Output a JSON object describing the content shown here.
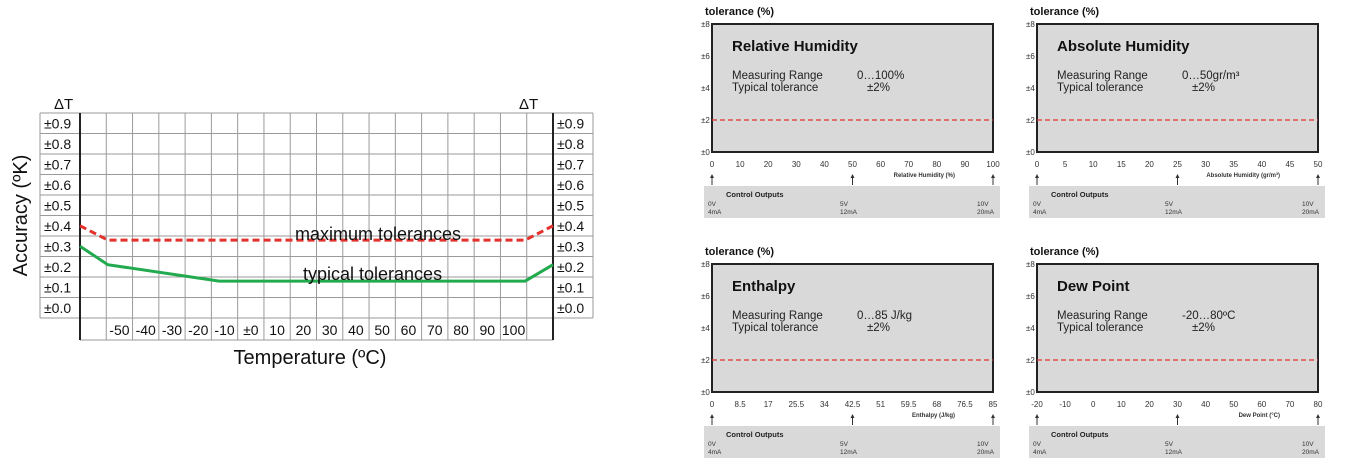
{
  "chart_data": [
    {
      "type": "line",
      "title": "",
      "xlabel": "Temperature (ºC)",
      "ylabel": "Accuracy (ºK)",
      "y_axis_header": "ΔT",
      "x_ticks": [
        "-50",
        "-40",
        "-30",
        "-20",
        "-10",
        "±0",
        "10",
        "20",
        "30",
        "40",
        "50",
        "60",
        "70",
        "80",
        "90",
        "100"
      ],
      "y_ticks": [
        "±0.0",
        "±0.1",
        "±0.2",
        "±0.3",
        "±0.4",
        "±0.5",
        "±0.6",
        "±0.7",
        "±0.8",
        "±0.9"
      ],
      "xlim": [
        -60,
        110
      ],
      "ylim": [
        0,
        1.0
      ],
      "grid": true,
      "series": [
        {
          "name": "maximum tolerances",
          "style": "dashed",
          "color": "#e4312b",
          "x": [
            -60,
            -50,
            90,
            100,
            110
          ],
          "y": [
            0.45,
            0.38,
            0.38,
            0.38,
            0.45
          ]
        },
        {
          "name": "typical tolerances",
          "style": "solid",
          "color": "#22aa4e",
          "x": [
            -60,
            -50,
            -10,
            90,
            100,
            110
          ],
          "y": [
            0.35,
            0.26,
            0.18,
            0.18,
            0.18,
            0.26
          ]
        }
      ]
    },
    {
      "type": "line",
      "title": "Relative Humidity",
      "ylabel": "tolerance (%)",
      "y_ticks": [
        "±0",
        "±2",
        "±4",
        "±6",
        "±8"
      ],
      "ylim": [
        0,
        8
      ],
      "range_label": "Measuring Range",
      "range_value": "0…100%",
      "tolerance_label": "Typical tolerance",
      "tolerance_value": "±2%",
      "x_ticks": [
        "0",
        "10",
        "20",
        "30",
        "40",
        "50",
        "60",
        "70",
        "80",
        "90",
        "100"
      ],
      "xlabel": "Relative Humidity (%)",
      "tolerance_line": 2,
      "outputs_title": "Control Outputs",
      "outputs": [
        {
          "v": "0V",
          "ma": "4mA"
        },
        {
          "v": "5V",
          "ma": "12mA"
        },
        {
          "v": "10V",
          "ma": "20mA"
        }
      ]
    },
    {
      "type": "line",
      "title": "Absolute Humidity",
      "ylabel": "tolerance (%)",
      "y_ticks": [
        "±0",
        "±2",
        "±4",
        "±6",
        "±8"
      ],
      "ylim": [
        0,
        8
      ],
      "range_label": "Measuring Range",
      "range_value": "0…50gr/m³",
      "tolerance_label": "Typical tolerance",
      "tolerance_value": "±2%",
      "x_ticks": [
        "0",
        "5",
        "10",
        "15",
        "20",
        "25",
        "30",
        "35",
        "40",
        "45",
        "50"
      ],
      "xlabel": "Absolute Humidity (gr/m³)",
      "tolerance_line": 2,
      "outputs_title": "Control Outputs",
      "outputs": [
        {
          "v": "0V",
          "ma": "4mA"
        },
        {
          "v": "5V",
          "ma": "12mA"
        },
        {
          "v": "10V",
          "ma": "20mA"
        }
      ]
    },
    {
      "type": "line",
      "title": "Enthalpy",
      "ylabel": "tolerance (%)",
      "y_ticks": [
        "±0",
        "±2",
        "±4",
        "±6",
        "±8"
      ],
      "ylim": [
        0,
        8
      ],
      "range_label": "Measuring Range",
      "range_value": "0…85 J/kg",
      "tolerance_label": "Typical tolerance",
      "tolerance_value": "±2%",
      "x_ticks": [
        "0",
        "8.5",
        "17",
        "25.5",
        "34",
        "42.5",
        "51",
        "59.5",
        "68",
        "76.5",
        "85"
      ],
      "xlabel": "Enthalpy (J/kg)",
      "tolerance_line": 2,
      "outputs_title": "Control Outputs",
      "outputs": [
        {
          "v": "0V",
          "ma": "4mA"
        },
        {
          "v": "5V",
          "ma": "12mA"
        },
        {
          "v": "10V",
          "ma": "20mA"
        }
      ]
    },
    {
      "type": "line",
      "title": "Dew Point",
      "ylabel": "tolerance (%)",
      "y_ticks": [
        "±0",
        "±2",
        "±4",
        "±6",
        "±8"
      ],
      "ylim": [
        0,
        8
      ],
      "range_label": "Measuring Range",
      "range_value": "-20…80ºC",
      "tolerance_label": "Typical tolerance",
      "tolerance_value": "±2%",
      "x_ticks": [
        "-20",
        "-10",
        "0",
        "10",
        "20",
        "30",
        "40",
        "50",
        "60",
        "70",
        "80"
      ],
      "xlabel": "Dew Point (°C)",
      "tolerance_line": 2,
      "outputs_title": "Control Outputs",
      "outputs": [
        {
          "v": "0V",
          "ma": "4mA"
        },
        {
          "v": "5V",
          "ma": "12mA"
        },
        {
          "v": "10V",
          "ma": "20mA"
        }
      ]
    }
  ]
}
